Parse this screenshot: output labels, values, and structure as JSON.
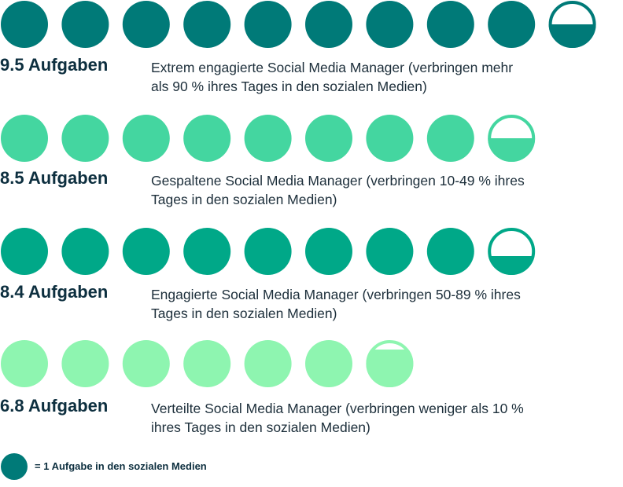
{
  "chart_data": {
    "type": "pictogram",
    "unit": "= 1 Aufgabe in den sozialen Medien",
    "unit_color": "#007a78",
    "rows": [
      {
        "value": 9.5,
        "label": "9.5 Aufgaben",
        "desc_line1": "Extrem engagierte Social Media Manager (verbringen mehr",
        "desc_line2": "als 90  % ihres Tages in den sozialen Medien)",
        "color": "#007a78"
      },
      {
        "value": 8.5,
        "label": "8.5 Aufgaben",
        "desc_line1": "Gespaltene Social Media Manager (verbringen 10-49 % ihres",
        "desc_line2": "Tages in den sozialen Medien)",
        "color": "#44d6a0"
      },
      {
        "value": 8.4,
        "label": "8.4 Aufgaben",
        "desc_line1": "Engagierte Social Media Manager (verbringen 50-89 % ihres",
        "desc_line2": "Tages in den sozialen Medien)",
        "color": "#00a888"
      },
      {
        "value": 6.8,
        "label": "6.8 Aufgaben",
        "desc_line1": "Verteilte Social Media Manager (verbringen weniger als 10 %",
        "desc_line2": "ihres Tages in den sozialen Medien)",
        "color": "#8ef5b0"
      }
    ]
  }
}
